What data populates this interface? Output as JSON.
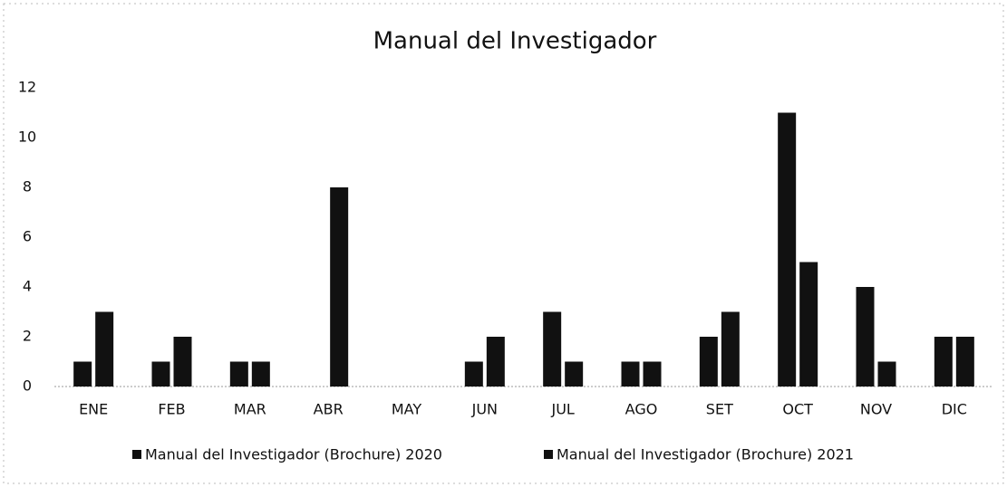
{
  "chart_data": {
    "type": "bar",
    "title": "Manual del Investigador",
    "categories": [
      "ENE",
      "FEB",
      "MAR",
      "ABR",
      "MAY",
      "JUN",
      "JUL",
      "AGO",
      "SET",
      "OCT",
      "NOV",
      "DIC"
    ],
    "series": [
      {
        "name": "Manual del Investigador (Brochure) 2020",
        "color": "#111111",
        "values": [
          1,
          1,
          1,
          0,
          0,
          1,
          3,
          1,
          2,
          11,
          4,
          2
        ]
      },
      {
        "name": "Manual del Investigador (Brochure) 2021",
        "color": "#111111",
        "values": [
          3,
          2,
          1,
          8,
          0,
          2,
          1,
          1,
          3,
          5,
          1,
          2
        ]
      }
    ],
    "ylim": [
      0,
      12
    ],
    "yticks": [
      0,
      2,
      4,
      6,
      8,
      10,
      12
    ],
    "grid": false,
    "legend": "bottom"
  }
}
